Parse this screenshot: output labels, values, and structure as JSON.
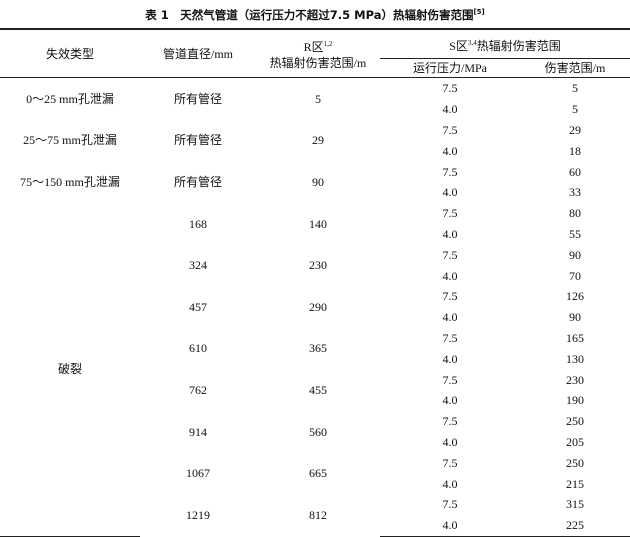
{
  "title": {
    "text": "表 1　天然气管道（运行压力不超过7.5 MPa）热辐射伤害范围",
    "ref": "[5]"
  },
  "headers": {
    "failure_type": "失效类型",
    "diameter": "管道直径/mm",
    "r_zone_prefix": "R区",
    "r_zone_sup": "1,2",
    "r_zone_suffix": "热辐射伤害范围/m",
    "s_zone_prefix": "S区",
    "s_zone_sup": "3,4",
    "s_zone_suffix": "热辐射伤害范围",
    "pressure": "运行压力/MPa",
    "range": "伤害范围/m"
  },
  "rows": [
    {
      "type": "0～25 mm孔泄漏",
      "diameter": "所有管径",
      "r": "5",
      "s": [
        [
          "7.5",
          "5"
        ],
        [
          "4.0",
          "5"
        ]
      ]
    },
    {
      "type": "25～75 mm孔泄漏",
      "diameter": "所有管径",
      "r": "29",
      "s": [
        [
          "7.5",
          "29"
        ],
        [
          "4.0",
          "18"
        ]
      ]
    },
    {
      "type": "75～150 mm孔泄漏",
      "diameter": "所有管径",
      "r": "90",
      "s": [
        [
          "7.5",
          "60"
        ],
        [
          "4.0",
          "33"
        ]
      ]
    }
  ],
  "rupture": {
    "type": "破裂",
    "rows": [
      {
        "diameter": "168",
        "r": "140",
        "s": [
          [
            "7.5",
            "80"
          ],
          [
            "4.0",
            "55"
          ]
        ]
      },
      {
        "diameter": "324",
        "r": "230",
        "s": [
          [
            "7.5",
            "90"
          ],
          [
            "4.0",
            "70"
          ]
        ]
      },
      {
        "diameter": "457",
        "r": "290",
        "s": [
          [
            "7.5",
            "126"
          ],
          [
            "4.0",
            "90"
          ]
        ]
      },
      {
        "diameter": "610",
        "r": "365",
        "s": [
          [
            "7.5",
            "165"
          ],
          [
            "4.0",
            "130"
          ]
        ]
      },
      {
        "diameter": "762",
        "r": "455",
        "s": [
          [
            "7.5",
            "230"
          ],
          [
            "4.0",
            "190"
          ]
        ]
      },
      {
        "diameter": "914",
        "r": "560",
        "s": [
          [
            "7.5",
            "250"
          ],
          [
            "4.0",
            "205"
          ]
        ]
      },
      {
        "diameter": "1067",
        "r": "665",
        "s": [
          [
            "7.5",
            "250"
          ],
          [
            "4.0",
            "215"
          ]
        ]
      },
      {
        "diameter": "1219",
        "r": "812",
        "s": [
          [
            "7.5",
            "315"
          ],
          [
            "4.0",
            "225"
          ]
        ]
      }
    ]
  }
}
